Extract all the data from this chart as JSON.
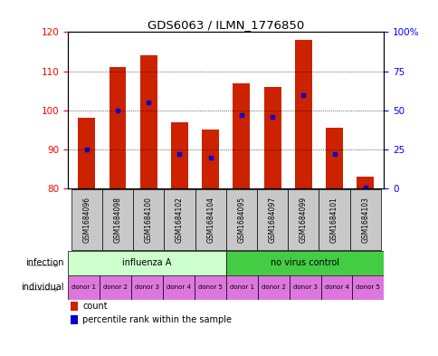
{
  "title": "GDS6063 / ILMN_1776850",
  "samples": [
    "GSM1684096",
    "GSM1684098",
    "GSM1684100",
    "GSM1684102",
    "GSM1684104",
    "GSM1684095",
    "GSM1684097",
    "GSM1684099",
    "GSM1684101",
    "GSM1684103"
  ],
  "count_values": [
    98,
    111,
    114,
    97,
    95,
    107,
    106,
    118,
    95.5,
    83
  ],
  "percentile_values": [
    25,
    50,
    55,
    22,
    20,
    47,
    46,
    60,
    22,
    1
  ],
  "ylim_left": [
    80,
    120
  ],
  "ylim_right": [
    0,
    100
  ],
  "yticks_left": [
    80,
    90,
    100,
    110,
    120
  ],
  "yticks_right": [
    0,
    25,
    50,
    75,
    100
  ],
  "bar_color": "#CC2200",
  "dot_color": "#0000CC",
  "infection_groups": [
    {
      "label": "influenza A",
      "start": 0,
      "end": 5,
      "color": "#CCFFCC"
    },
    {
      "label": "no virus control",
      "start": 5,
      "end": 10,
      "color": "#44CC44"
    }
  ],
  "individual_labels": [
    "donor 1",
    "donor 2",
    "donor 3",
    "donor 4",
    "donor 5",
    "donor 1",
    "donor 2",
    "donor 3",
    "donor 4",
    "donor 5"
  ],
  "individual_color": "#DD77DD",
  "gsm_bg_color": "#C8C8C8",
  "infection_row_label": "infection",
  "individual_row_label": "individual",
  "legend_count": "count",
  "legend_pct": "percentile rank within the sample"
}
